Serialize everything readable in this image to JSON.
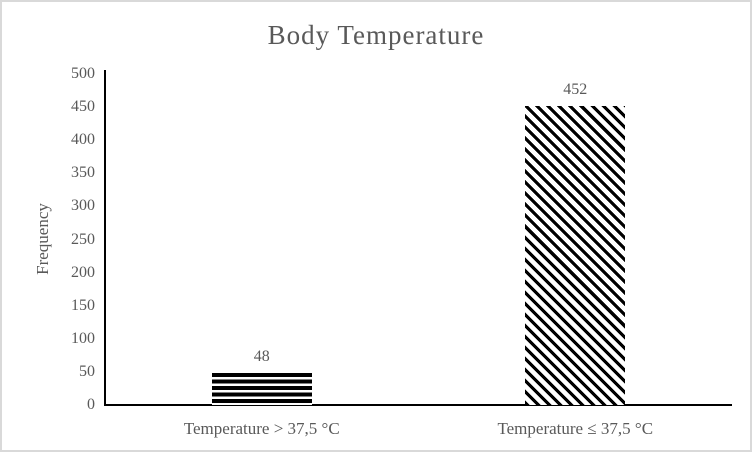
{
  "window": {
    "background": "#ffffff",
    "border_color": "#d9d9d9"
  },
  "chart_data": {
    "type": "bar",
    "title": "Body Temperature",
    "categories": [
      "Temperature > 37,5 °C",
      "Temperature ≤ 37,5 °C"
    ],
    "values": [
      48,
      452
    ],
    "data_labels": [
      "48",
      "452"
    ],
    "xlabel": "",
    "ylabel": "Frequency",
    "ylim": [
      0,
      500
    ],
    "yticks": [
      0,
      50,
      100,
      150,
      200,
      250,
      300,
      350,
      400,
      450,
      500
    ],
    "grid": false,
    "legend": "none",
    "bar_patterns": [
      "horizontal-stripes",
      "diagonal-stripes"
    ],
    "bar_color": "#000000",
    "axis_color": "#000000",
    "text_color": "#595959"
  }
}
